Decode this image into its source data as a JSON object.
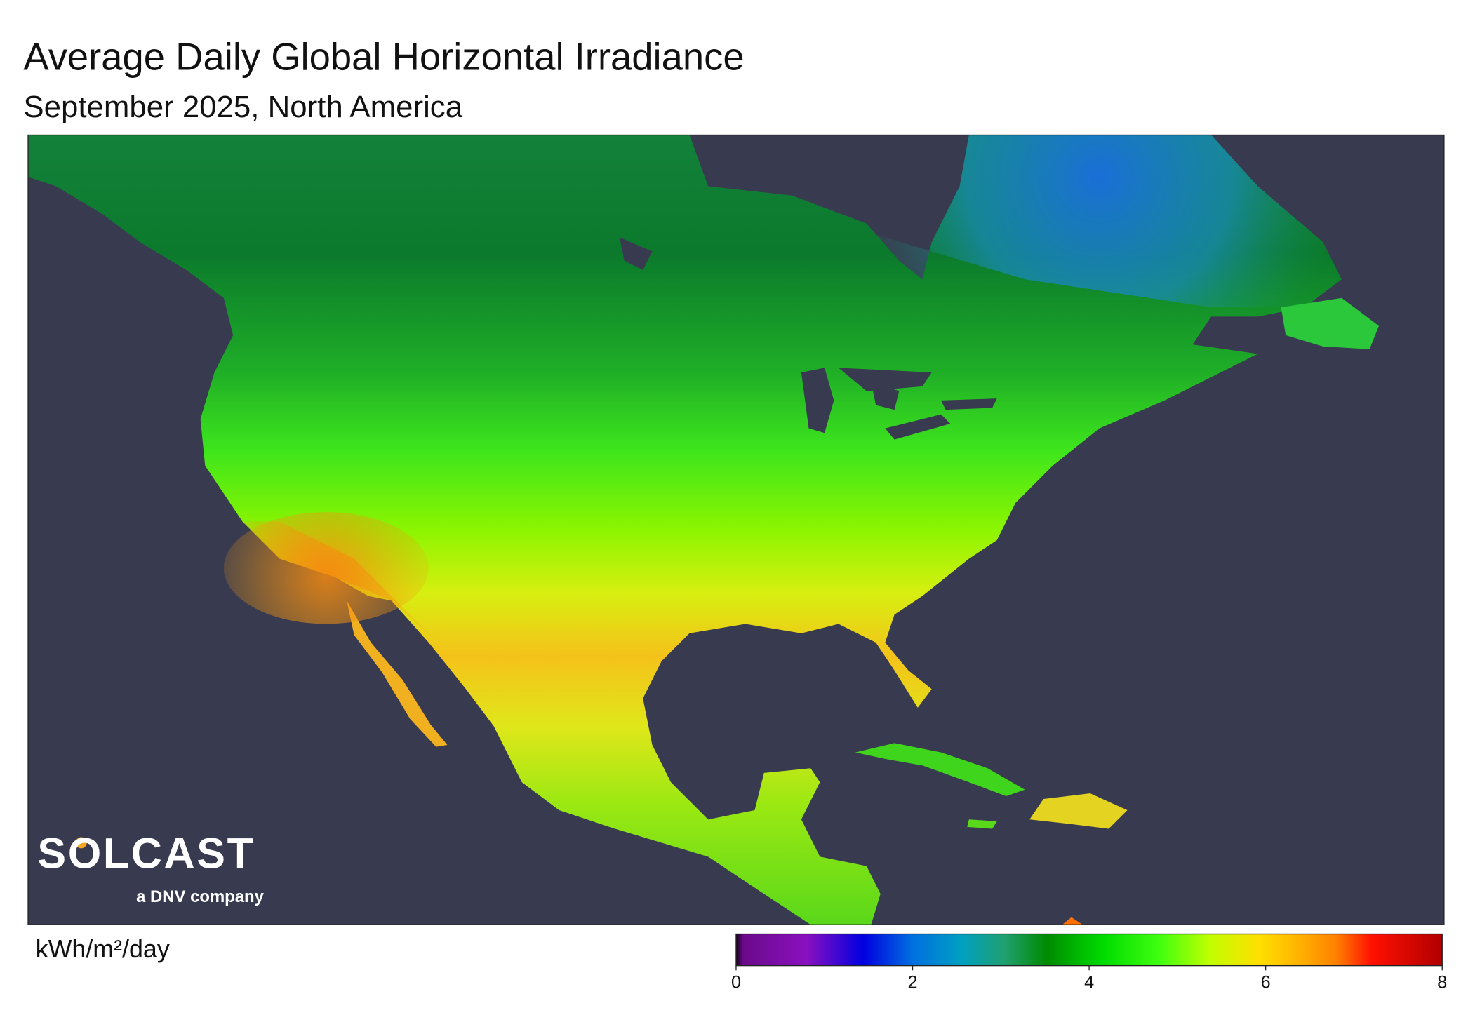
{
  "title": "Average Daily Global Horizontal Irradiance",
  "subtitle": "September 2025, North America",
  "colorbar": {
    "label": "kWh/m²/day",
    "range": [
      0,
      8
    ],
    "ticks": [
      0,
      2,
      4,
      6,
      8
    ]
  },
  "logo": {
    "name": "SOLCAST",
    "tagline": "a DNV company"
  }
}
